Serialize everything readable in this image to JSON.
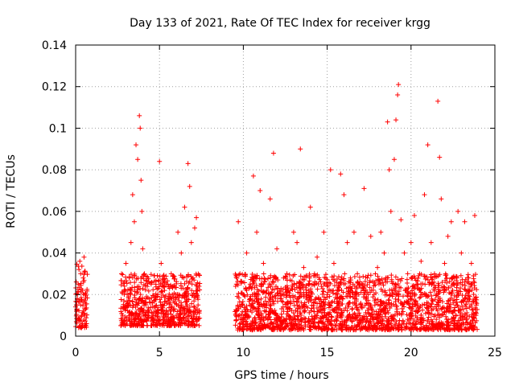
{
  "chart_data": {
    "type": "scatter",
    "title": "Day 133 of 2021, Rate Of TEC Index for receiver krgg",
    "xlabel": "GPS time / hours",
    "ylabel": "ROTI / TECUs",
    "xlim": [
      0,
      25
    ],
    "ylim": [
      0,
      0.14
    ],
    "x_ticks": [
      0,
      5,
      10,
      15,
      20,
      25
    ],
    "x_tick_labels": [
      "0",
      "5",
      "10",
      "15",
      "20",
      "25"
    ],
    "y_ticks": [
      0,
      0.02,
      0.04,
      0.06,
      0.08,
      0.1,
      0.12,
      0.14
    ],
    "y_tick_labels": [
      "0",
      "0.02",
      "0.04",
      "0.06",
      "0.08",
      "0.1",
      "0.12",
      "0.14"
    ],
    "grid": true,
    "marker": "+",
    "color": "#ff0000",
    "series": [
      {
        "points": [
          [
            0.05,
            0.012
          ],
          [
            0.1,
            0.018
          ],
          [
            0.15,
            0.025
          ],
          [
            0.2,
            0.032
          ],
          [
            0.25,
            0.036
          ],
          [
            0.3,
            0.015
          ],
          [
            0.35,
            0.01
          ],
          [
            0.4,
            0.022
          ],
          [
            0.45,
            0.028
          ],
          [
            0.5,
            0.038
          ],
          [
            0.55,
            0.02
          ],
          [
            0.6,
            0.013
          ],
          [
            0.2,
            0.008
          ],
          [
            0.4,
            0.006
          ],
          [
            0.3,
            0.03
          ],
          [
            2.8,
            0.01
          ],
          [
            2.9,
            0.02
          ],
          [
            3.0,
            0.035
          ],
          [
            3.1,
            0.015
          ],
          [
            3.2,
            0.028
          ],
          [
            3.3,
            0.045
          ],
          [
            3.4,
            0.068
          ],
          [
            3.5,
            0.055
          ],
          [
            3.6,
            0.092
          ],
          [
            3.7,
            0.085
          ],
          [
            3.8,
            0.106
          ],
          [
            3.85,
            0.1
          ],
          [
            3.9,
            0.075
          ],
          [
            3.95,
            0.06
          ],
          [
            4.0,
            0.042
          ],
          [
            4.1,
            0.03
          ],
          [
            4.2,
            0.018
          ],
          [
            4.3,
            0.012
          ],
          [
            4.5,
            0.025
          ],
          [
            4.7,
            0.014
          ],
          [
            4.9,
            0.02
          ],
          [
            5.0,
            0.084
          ],
          [
            5.1,
            0.035
          ],
          [
            5.3,
            0.022
          ],
          [
            5.5,
            0.018
          ],
          [
            5.7,
            0.03
          ],
          [
            5.9,
            0.016
          ],
          [
            6.1,
            0.05
          ],
          [
            6.3,
            0.04
          ],
          [
            6.5,
            0.062
          ],
          [
            6.7,
            0.083
          ],
          [
            6.8,
            0.072
          ],
          [
            6.9,
            0.045
          ],
          [
            7.0,
            0.028
          ],
          [
            7.1,
            0.052
          ],
          [
            7.2,
            0.057
          ],
          [
            7.3,
            0.015
          ],
          [
            6.0,
            0.01
          ],
          [
            4.6,
            0.008
          ],
          [
            3.5,
            0.006
          ],
          [
            9.6,
            0.012
          ],
          [
            9.7,
            0.055
          ],
          [
            9.8,
            0.03
          ],
          [
            10.0,
            0.02
          ],
          [
            10.2,
            0.04
          ],
          [
            10.4,
            0.015
          ],
          [
            10.6,
            0.077
          ],
          [
            10.8,
            0.05
          ],
          [
            11.0,
            0.07
          ],
          [
            11.2,
            0.035
          ],
          [
            11.4,
            0.022
          ],
          [
            11.6,
            0.066
          ],
          [
            11.8,
            0.088
          ],
          [
            12.0,
            0.042
          ],
          [
            12.2,
            0.018
          ],
          [
            12.4,
            0.028
          ],
          [
            12.6,
            0.03
          ],
          [
            12.8,
            0.016
          ],
          [
            13.0,
            0.05
          ],
          [
            13.2,
            0.045
          ],
          [
            13.4,
            0.09
          ],
          [
            13.6,
            0.033
          ],
          [
            13.8,
            0.02
          ],
          [
            14.0,
            0.062
          ],
          [
            14.2,
            0.025
          ],
          [
            14.4,
            0.038
          ],
          [
            14.6,
            0.014
          ],
          [
            14.8,
            0.05
          ],
          [
            15.0,
            0.024
          ],
          [
            15.2,
            0.08
          ],
          [
            15.4,
            0.035
          ],
          [
            15.6,
            0.018
          ],
          [
            15.8,
            0.078
          ],
          [
            16.0,
            0.068
          ],
          [
            16.2,
            0.045
          ],
          [
            16.4,
            0.022
          ],
          [
            16.6,
            0.05
          ],
          [
            16.8,
            0.03
          ],
          [
            17.0,
            0.015
          ],
          [
            17.2,
            0.071
          ],
          [
            17.4,
            0.028
          ],
          [
            17.6,
            0.048
          ],
          [
            17.8,
            0.02
          ],
          [
            18.0,
            0.033
          ],
          [
            18.2,
            0.05
          ],
          [
            18.4,
            0.04
          ],
          [
            18.6,
            0.103
          ],
          [
            18.7,
            0.08
          ],
          [
            18.8,
            0.06
          ],
          [
            19.0,
            0.085
          ],
          [
            19.1,
            0.104
          ],
          [
            19.2,
            0.116
          ],
          [
            19.25,
            0.121
          ],
          [
            19.4,
            0.056
          ],
          [
            19.6,
            0.04
          ],
          [
            19.8,
            0.03
          ],
          [
            20.0,
            0.045
          ],
          [
            20.2,
            0.058
          ],
          [
            20.4,
            0.025
          ],
          [
            20.6,
            0.036
          ],
          [
            20.8,
            0.068
          ],
          [
            21.0,
            0.092
          ],
          [
            21.2,
            0.045
          ],
          [
            21.4,
            0.03
          ],
          [
            21.6,
            0.113
          ],
          [
            21.7,
            0.086
          ],
          [
            21.8,
            0.066
          ],
          [
            22.0,
            0.035
          ],
          [
            22.2,
            0.048
          ],
          [
            22.4,
            0.055
          ],
          [
            22.6,
            0.028
          ],
          [
            22.8,
            0.06
          ],
          [
            23.0,
            0.04
          ],
          [
            23.2,
            0.055
          ],
          [
            23.4,
            0.022
          ],
          [
            23.6,
            0.035
          ],
          [
            23.8,
            0.058
          ],
          [
            23.9,
            0.015
          ],
          [
            12.0,
            0.008
          ],
          [
            15.0,
            0.004
          ],
          [
            18.0,
            0.006
          ],
          [
            21.0,
            0.007
          ],
          [
            10.0,
            0.009
          ]
        ],
        "dense_bands": [
          {
            "x_range": [
              0.0,
              0.7
            ],
            "y_range": [
              0.004,
              0.035
            ],
            "density": 0.9
          },
          {
            "x_range": [
              2.7,
              7.4
            ],
            "y_range": [
              0.005,
              0.03
            ],
            "density": 1.0
          },
          {
            "x_range": [
              9.5,
              23.95
            ],
            "y_range": [
              0.003,
              0.03
            ],
            "density": 1.0
          }
        ]
      }
    ]
  }
}
